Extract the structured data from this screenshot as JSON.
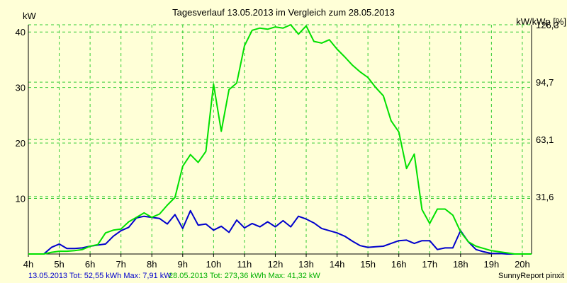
{
  "chart_data": {
    "type": "line",
    "title": "Tagesverlauf 13.05.2013 im Vergleich zum 28.05.2013",
    "ylabel_left": "kW",
    "ylabel_right": "kW/kWp [%]",
    "x_ticks": [
      "4h",
      "5h",
      "6h",
      "7h",
      "8h",
      "9h",
      "10h",
      "11h",
      "12h",
      "13h",
      "14h",
      "15h",
      "16h",
      "17h",
      "18h",
      "19h",
      "20h"
    ],
    "y_ticks_left": [
      "10",
      "20",
      "30",
      "40"
    ],
    "y_ticks_right": [
      "31,6",
      "63,1",
      "94,7",
      "126,3"
    ],
    "xlim": [
      4,
      20.3
    ],
    "ylim": [
      0,
      41.3
    ],
    "grid": true,
    "series": [
      {
        "name": "13.05.2013",
        "color": "#0000cc",
        "x": [
          4.0,
          4.5,
          4.75,
          5.0,
          5.25,
          5.5,
          5.75,
          6.0,
          6.25,
          6.5,
          6.75,
          7.0,
          7.25,
          7.5,
          7.75,
          8.0,
          8.25,
          8.5,
          8.75,
          9.0,
          9.25,
          9.5,
          9.75,
          10.0,
          10.25,
          10.5,
          10.75,
          11.0,
          11.25,
          11.5,
          11.75,
          12.0,
          12.25,
          12.5,
          12.75,
          13.0,
          13.25,
          13.5,
          13.75,
          14.0,
          14.25,
          14.5,
          14.75,
          15.0,
          15.25,
          15.5,
          15.75,
          16.0,
          16.25,
          16.5,
          16.75,
          17.0,
          17.25,
          17.5,
          17.75,
          18.0,
          18.25,
          18.5,
          18.75,
          19.0,
          19.25,
          19.5,
          19.75,
          20.0,
          20.3
        ],
        "values": [
          0,
          0,
          1.2,
          1.8,
          1.0,
          1.0,
          1.1,
          1.4,
          1.6,
          1.8,
          3.2,
          4.2,
          4.8,
          6.5,
          6.8,
          6.6,
          6.4,
          5.4,
          7.1,
          4.6,
          7.8,
          5.2,
          5.4,
          4.3,
          5.0,
          3.9,
          6.1,
          4.7,
          5.5,
          4.9,
          5.8,
          4.9,
          6.0,
          4.9,
          6.8,
          6.3,
          5.6,
          4.6,
          4.2,
          3.8,
          3.2,
          2.3,
          1.5,
          1.2,
          1.3,
          1.4,
          1.9,
          2.4,
          2.5,
          1.9,
          2.4,
          2.4,
          0.8,
          1.1,
          1.1,
          4.2,
          2.2,
          0.8,
          0.4,
          0.1,
          0.1,
          0,
          0,
          0,
          0
        ]
      },
      {
        "name": "28.05.2013",
        "color": "#00e000",
        "x": [
          4.0,
          4.5,
          4.75,
          5.0,
          5.25,
          5.5,
          5.75,
          6.0,
          6.25,
          6.5,
          6.75,
          7.0,
          7.25,
          7.5,
          7.75,
          8.0,
          8.25,
          8.5,
          8.75,
          9.0,
          9.25,
          9.5,
          9.75,
          10.0,
          10.25,
          10.5,
          10.75,
          11.0,
          11.25,
          11.5,
          11.75,
          12.0,
          12.25,
          12.5,
          12.75,
          13.0,
          13.25,
          13.5,
          13.75,
          14.0,
          14.25,
          14.5,
          14.75,
          15.0,
          15.25,
          15.5,
          15.75,
          16.0,
          16.25,
          16.5,
          16.75,
          17.0,
          17.25,
          17.5,
          17.75,
          18.0,
          18.25,
          18.5,
          18.75,
          19.0,
          19.25,
          19.5,
          19.75,
          20.0,
          20.3
        ],
        "values": [
          0,
          0,
          0.3,
          0.5,
          0.5,
          0.6,
          0.8,
          1.4,
          1.7,
          3.8,
          4.3,
          4.5,
          5.8,
          6.6,
          7.4,
          6.6,
          7.2,
          8.8,
          10.2,
          15.8,
          17.9,
          16.5,
          18.5,
          30.6,
          22.1,
          29.6,
          30.8,
          37.5,
          40.3,
          40.7,
          40.5,
          40.9,
          40.7,
          41.3,
          39.6,
          41.1,
          38.3,
          38.0,
          38.6,
          36.9,
          35.5,
          34.0,
          32.8,
          31.8,
          30.0,
          28.5,
          24.0,
          22.0,
          15.4,
          18.0,
          8.0,
          5.5,
          8.1,
          8.1,
          7.0,
          4.0,
          2.2,
          1.4,
          1.0,
          0.6,
          0.4,
          0.2,
          0,
          0,
          0
        ]
      }
    ]
  },
  "footer": {
    "blue_text": "13.05.2013 Tot: 52,55 kWh Max: 7,91 kW",
    "green_text": "28.05.2013 Tot: 273,36 kWh Max: 41,32 kW",
    "credit": "SunnyReport pinxit"
  },
  "colors": {
    "background": "#ffffd7",
    "grid": "#33cc33",
    "axis": "#000000"
  }
}
